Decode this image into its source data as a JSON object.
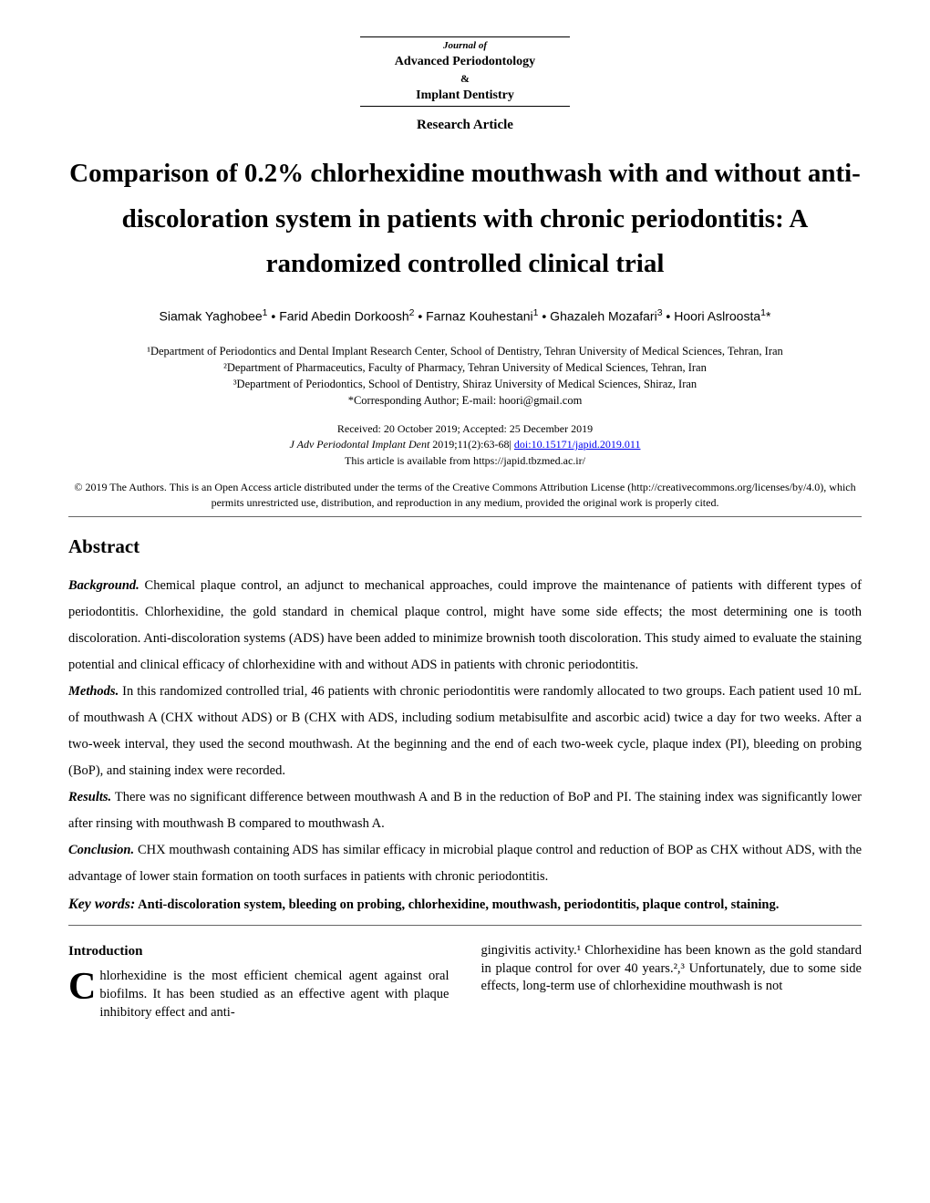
{
  "journal": {
    "prefix": "Journal of",
    "line1": "Advanced Periodontology",
    "amp": "&",
    "line2": "Implant Dentistry"
  },
  "article_type": "Research Article",
  "title": "Comparison of 0.2% chlorhexidine mouthwash with and without anti-discoloration system in patients with chronic periodontitis: A randomized controlled clinical trial",
  "authors_html": "Siamak Yaghobee<sup>1</sup> • Farid Abedin Dorkoosh<sup>2</sup> • Farnaz Kouhestani<sup>1</sup> • Ghazaleh Mozafari<sup>3</sup> • Hoori Aslroosta<sup>1</sup>*",
  "affiliations": {
    "a1": "¹Department of Periodontics and Dental Implant Research Center, School of Dentistry, Tehran University of Medical Sciences, Tehran, Iran",
    "a2": "²Department of Pharmaceutics, Faculty of Pharmacy, Tehran University of Medical Sciences, Tehran, Iran",
    "a3": "³Department of Periodontics, School of Dentistry, Shiraz University of Medical Sciences, Shiraz, Iran",
    "corresponding": "*Corresponding Author; E-mail: hoori@gmail.com"
  },
  "pub": {
    "received_accepted": "Received: 20 October 2019; Accepted: 25 December 2019",
    "citation_prefix": "J Adv Periodontal Implant Dent",
    "citation_rest": " 2019;11(2):63-68| ",
    "doi": "doi:10.15171/japid.2019.011",
    "availability": "This article is available from https://japid.tbzmed.ac.ir/"
  },
  "license": "© 2019 The Authors. This is an Open Access article distributed under the terms of the Creative Commons Attribution License (http://creativecommons.org/licenses/by/4.0), which permits unrestricted use, distribution, and reproduction in any medium, provided the original work is properly cited.",
  "abstract": {
    "heading": "Abstract",
    "background_label": "Background.",
    "background": " Chemical plaque control, an adjunct to mechanical approaches, could improve the maintenance of patients with different types of periodontitis. Chlorhexidine, the gold standard in chemical plaque control, might have some side effects; the most determining one is tooth discoloration. Anti-discoloration systems (ADS) have been added to minimize brownish tooth discoloration. This study aimed to evaluate the staining potential and clinical efficacy of chlorhexidine with and without ADS in patients with chronic periodontitis.",
    "methods_label": "Methods.",
    "methods": " In this randomized controlled trial, 46 patients with chronic periodontitis were randomly allocated to two groups. Each patient used 10 mL of mouthwash A (CHX without ADS) or B (CHX with ADS, including sodium metabisulfite and ascorbic acid) twice a day for two weeks. After a two-week interval, they used the second mouthwash. At the beginning and the end of each two-week cycle, plaque index (PI), bleeding on probing (BoP), and staining index were recorded.",
    "results_label": "Results.",
    "results": " There was no significant difference between mouthwash A and B in the reduction of BoP and PI. The staining index was significantly lower after rinsing with mouthwash B compared to mouthwash A.",
    "conclusion_label": "Conclusion.",
    "conclusion": " CHX mouthwash containing ADS has similar efficacy in microbial plaque control and reduction of BOP as CHX without ADS, with the advantage of lower stain formation on tooth surfaces in patients with chronic periodontitis.",
    "keywords_label": "Key words:",
    "keywords": " Anti-discoloration system, bleeding on probing, chlorhexidine, mouthwash, periodontitis, plaque control, staining."
  },
  "intro": {
    "heading": "Introduction",
    "dropcap": "C",
    "col1": "hlorhexidine is the most efficient chemical agent against oral biofilms. It has been studied as an effective agent with plaque inhibitory effect and anti-",
    "col2": "gingivitis activity.¹ Chlorhexidine has been known as the gold standard in plaque control for over 40 years.²,³ Unfortunately, due to some side effects, long-term use of chlorhexidine mouthwash is not"
  }
}
